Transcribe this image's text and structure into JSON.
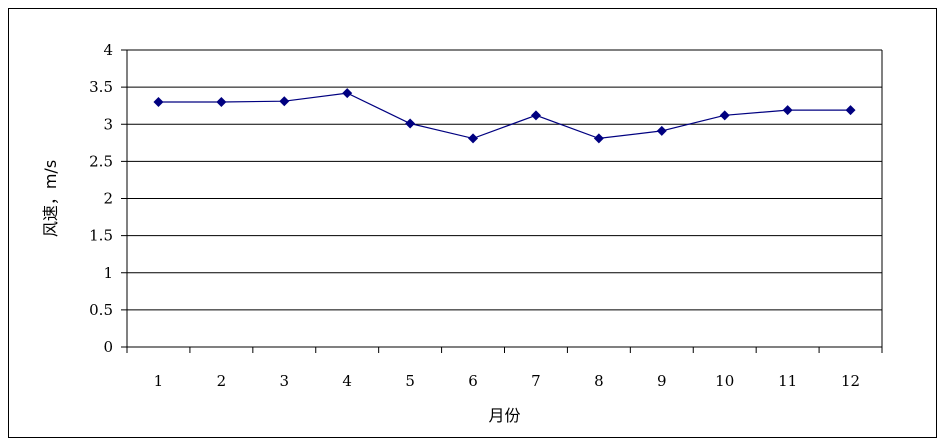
{
  "chart_data": {
    "type": "line",
    "title": "",
    "xlabel": "月份",
    "ylabel": "风速，m/s",
    "categories": [
      "1",
      "2",
      "3",
      "4",
      "5",
      "6",
      "7",
      "8",
      "9",
      "10",
      "11",
      "12"
    ],
    "series": [
      {
        "values": [
          3.3,
          3.3,
          3.31,
          3.42,
          3.01,
          2.81,
          3.12,
          2.81,
          2.91,
          3.12,
          3.19,
          3.19
        ]
      }
    ],
    "ylim": [
      0,
      4
    ],
    "yticks": [
      "0",
      "0.5",
      "1",
      "1.5",
      "2",
      "2.5",
      "3",
      "3.5",
      "4"
    ],
    "grid": true,
    "legend": "none",
    "colors": {
      "series": "#000080",
      "marker": "#000080",
      "grid": "#000000",
      "frame": "#000000"
    }
  }
}
